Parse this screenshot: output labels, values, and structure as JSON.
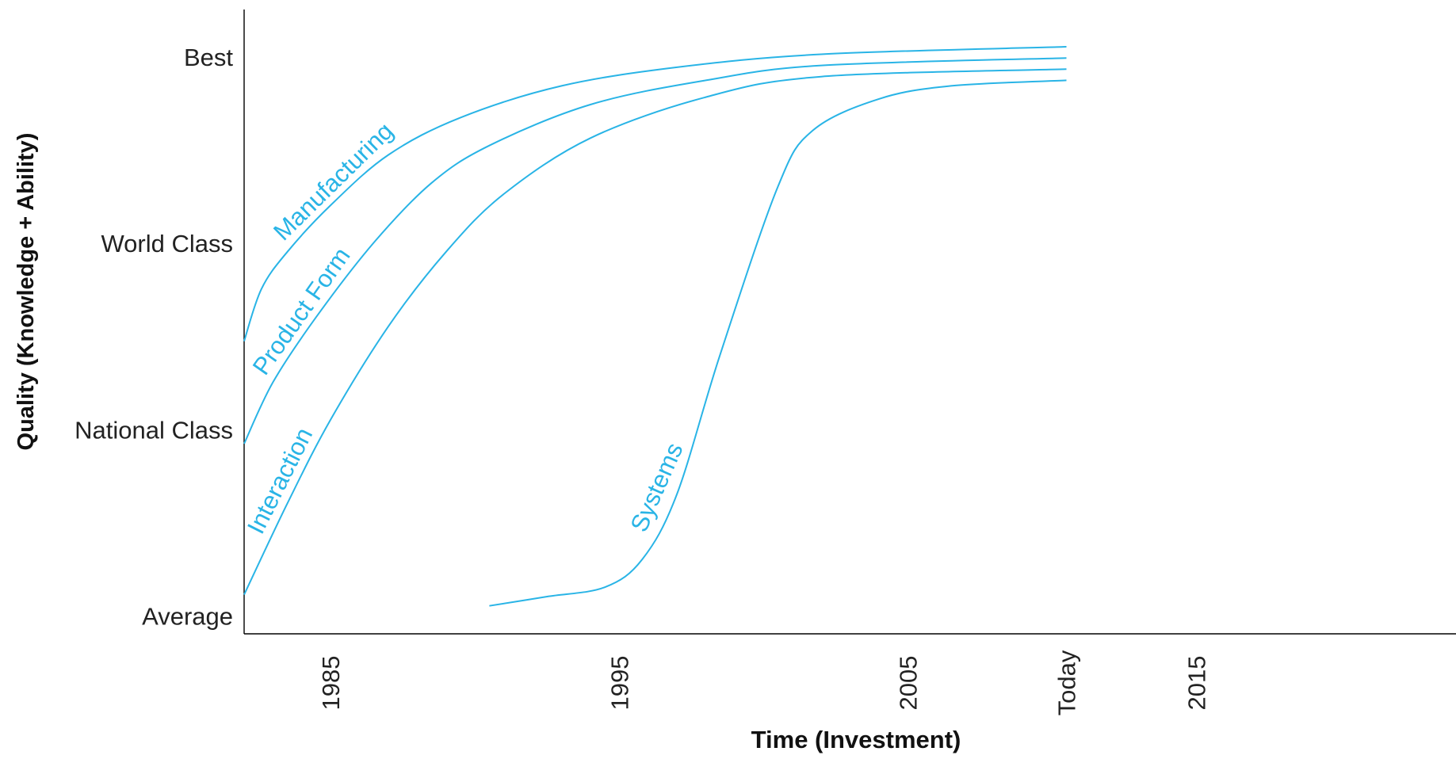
{
  "chart_data": {
    "type": "line",
    "title": "",
    "xlabel": "Time  (Investment)",
    "ylabel": "Quality  (Knowledge + Ability)",
    "x_ticks": [
      "1985",
      "1995",
      "2005",
      "Today",
      "2015"
    ],
    "x_tick_values": [
      1985,
      1995,
      2005,
      2010.5,
      2015
    ],
    "xlim": [
      1982,
      2024
    ],
    "y_ticks": [
      "Best",
      "World Class",
      "National Class",
      "Average"
    ],
    "y_tick_values": [
      3,
      2,
      1,
      0
    ],
    "ylim": [
      -0.1,
      3.25
    ],
    "grid": false,
    "legend": "none",
    "series_color": "#29b4e6",
    "series": [
      {
        "name": "Manufacturing",
        "x": [
          1982,
          1982.6,
          1983.5,
          1985,
          1987,
          1989.5,
          1993,
          1997,
          2002,
          2010.5
        ],
        "y": [
          1.47,
          1.75,
          1.95,
          2.2,
          2.47,
          2.67,
          2.84,
          2.94,
          3.01,
          3.05
        ]
      },
      {
        "name": "Product Form",
        "x": [
          1982,
          1983,
          1984.5,
          1986.5,
          1988.5,
          1990.5,
          1994,
          1998,
          2002,
          2010.5
        ],
        "y": [
          0.92,
          1.25,
          1.6,
          2.0,
          2.32,
          2.52,
          2.74,
          2.87,
          2.95,
          2.99
        ]
      },
      {
        "name": "Interaction",
        "x": [
          1982,
          1983.5,
          1985,
          1987,
          1989,
          1991,
          1994,
          1998,
          2002,
          2010.5
        ],
        "y": [
          0.11,
          0.6,
          1.05,
          1.55,
          1.95,
          2.26,
          2.56,
          2.78,
          2.89,
          2.93
        ]
      },
      {
        "name": "Systems",
        "x": [
          1990.5,
          1992.5,
          1994.5,
          1995.8,
          1997,
          1998.5,
          2000.5,
          2001.7,
          2004,
          2006.5,
          2010.5
        ],
        "y": [
          0.05,
          0.1,
          0.15,
          0.3,
          0.65,
          1.4,
          2.3,
          2.6,
          2.77,
          2.84,
          2.87
        ]
      }
    ]
  }
}
